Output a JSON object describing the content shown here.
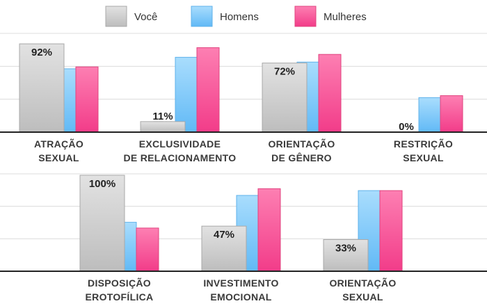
{
  "chart_data": {
    "type": "bar",
    "colors": {
      "voce": "#d0d0d0",
      "homens": "#8fd0fb",
      "mulheres": "#fb66a2",
      "grid": "#dcdcdc",
      "axis": "#222222"
    },
    "legend": [
      {
        "key": "voce",
        "label": "Você"
      },
      {
        "key": "homens",
        "label": "Homens"
      },
      {
        "key": "mulheres",
        "label": "Mulheres"
      }
    ],
    "ylim": [
      0,
      100
    ],
    "panels": [
      {
        "categories": [
          {
            "lines": [
              "ATRAÇÃO",
              "SEXUAL"
            ],
            "voce": 92,
            "voce_label": "92%",
            "homens": 66,
            "mulheres": 68
          },
          {
            "lines": [
              "EXCLUSIVIDADE",
              "DE RELACIONAMENTO"
            ],
            "voce": 11,
            "voce_label": "11%",
            "homens": 78,
            "mulheres": 88
          },
          {
            "lines": [
              "ORIENTAÇÃO",
              "DE GÊNERO"
            ],
            "voce": 72,
            "voce_label": "72%",
            "homens": 73,
            "mulheres": 81
          },
          {
            "lines": [
              "RESTRIÇÃO",
              "SEXUAL"
            ],
            "voce": 0,
            "voce_label": "0%",
            "homens": 36,
            "mulheres": 38
          }
        ]
      },
      {
        "categories": [
          {
            "lines": [
              "DISPOSIÇÃO",
              "EROTOFÍLICA"
            ],
            "voce": 100,
            "voce_label": "100%",
            "homens": 51,
            "mulheres": 45
          },
          {
            "lines": [
              "INVESTIMENTO",
              "EMOCIONAL"
            ],
            "voce": 47,
            "voce_label": "47%",
            "homens": 79,
            "mulheres": 86
          },
          {
            "lines": [
              "ORIENTAÇÃO",
              "SEXUAL"
            ],
            "voce": 33,
            "voce_label": "33%",
            "homens": 84,
            "mulheres": 84
          }
        ]
      }
    ]
  }
}
